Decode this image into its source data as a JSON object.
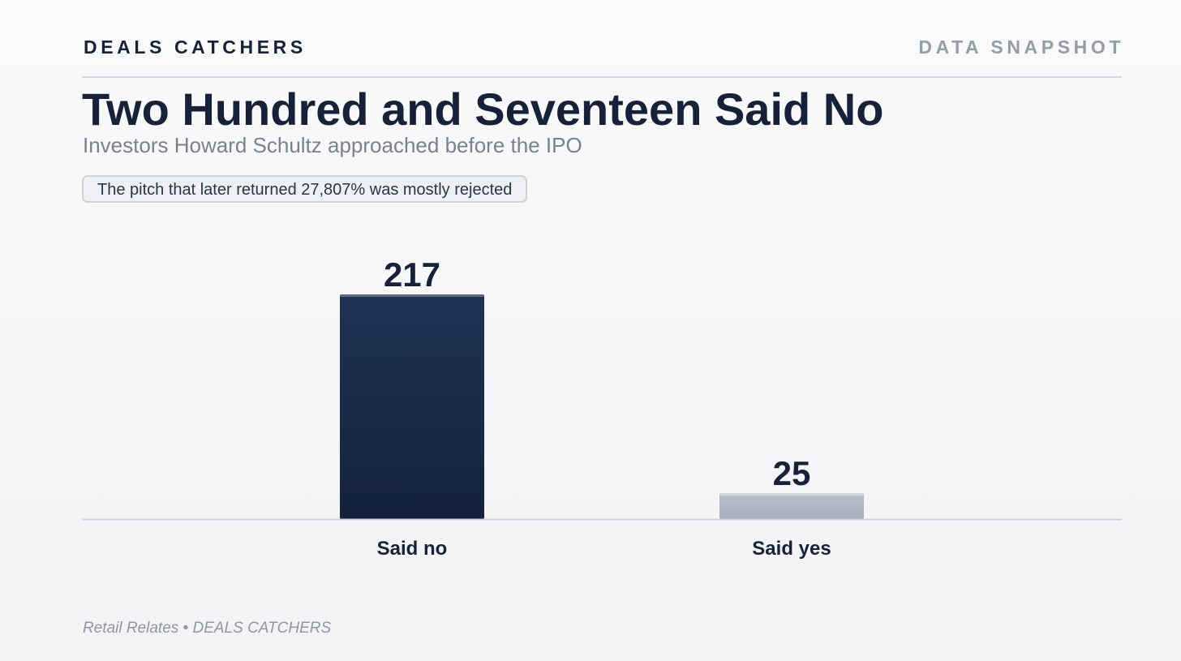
{
  "header": {
    "brand": "DEALS CATCHERS",
    "tag": "DATA SNAPSHOT"
  },
  "title": "Two Hundred and Seventeen Said No",
  "subtitle": "Investors Howard Schultz approached before the IPO",
  "callout": "The pitch that later returned 27,807% was mostly rejected",
  "footer": "Retail Relates • DEALS CATCHERS",
  "colors": {
    "text": "#16223a",
    "bar_no_top": "#203355",
    "bar_no_bottom": "#14223b",
    "bar_yes_top": "#b8bfcb",
    "bar_yes_bottom": "#a7afbd",
    "baseline": "#cfd2da"
  },
  "chart_data": {
    "type": "bar",
    "categories": [
      "Said no",
      "Said yes"
    ],
    "values": [
      217,
      25
    ],
    "data_labels": [
      "217",
      "25"
    ],
    "title": "Two Hundred and Seventeen Said No",
    "subtitle": "Investors Howard Schultz approached before the IPO",
    "xlabel": "",
    "ylabel": "",
    "ylim": [
      0,
      217
    ],
    "grid": false,
    "legend": "none"
  }
}
